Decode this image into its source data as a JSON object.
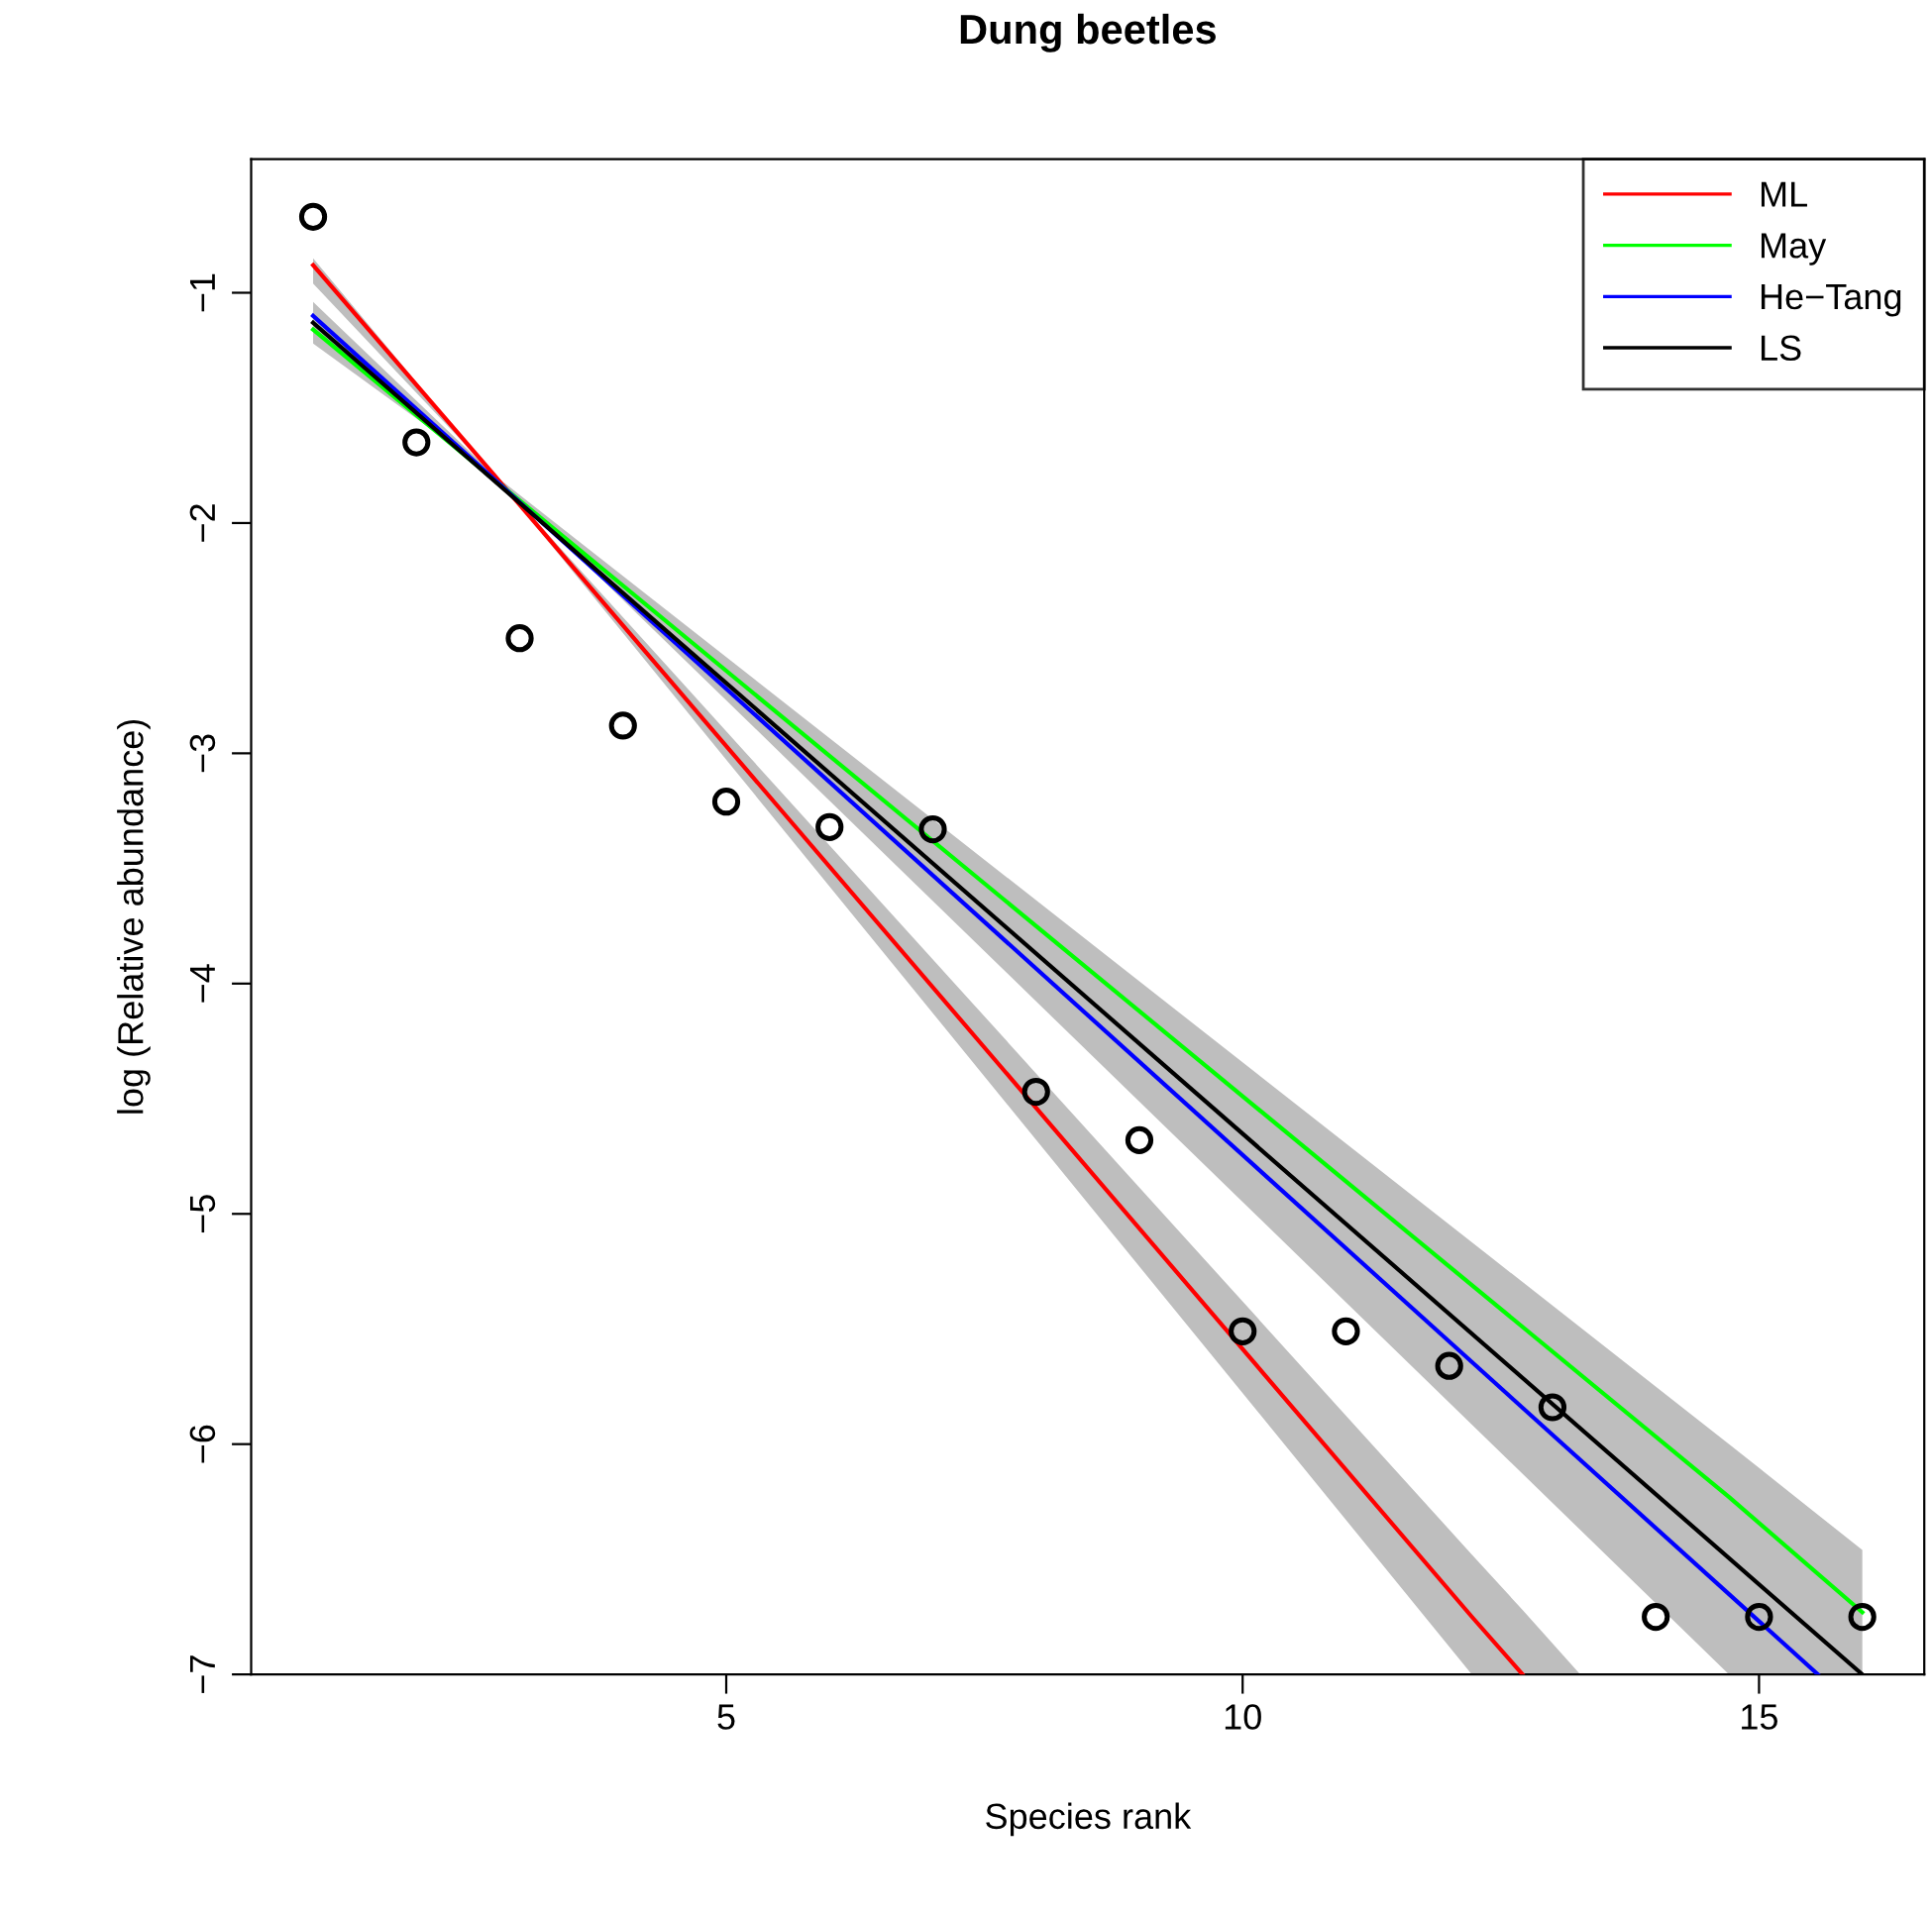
{
  "chart_data": {
    "type": "line",
    "title": "Dung beetles",
    "xlabel": "Species rank",
    "ylabel": "log (Relative abundance)",
    "xlim": [
      0.4,
      16.6
    ],
    "xticks": [
      5,
      10,
      15
    ],
    "ylim": [
      -7,
      -0.42
    ],
    "yticks": [
      {
        "value": -1,
        "label": "−1"
      },
      {
        "value": -2,
        "label": "−2"
      },
      {
        "value": -3,
        "label": "−3"
      },
      {
        "value": -4,
        "label": "−4"
      },
      {
        "value": -5,
        "label": "−5"
      },
      {
        "value": -6,
        "label": "−6"
      },
      {
        "value": -7,
        "label": "−7"
      }
    ],
    "grid": false,
    "legend": "top right",
    "line_style": "solid",
    "series": [
      {
        "type": "scatter",
        "marker": "circle",
        "color": "#000000",
        "x": [
          1,
          2,
          3,
          4,
          5,
          6,
          7,
          8,
          9,
          10,
          11,
          12,
          13,
          14,
          15,
          16
        ],
        "values": [
          -0.67,
          -1.65,
          -2.5,
          -2.88,
          -3.21,
          -3.32,
          -3.33,
          -4.47,
          -4.68,
          -5.51,
          -5.51,
          -5.66,
          -5.84,
          -6.75,
          -6.75,
          -6.75
        ]
      },
      {
        "name": "ML",
        "color": "#ff0000",
        "x": [
          1,
          2.75,
          12.22,
          12.71,
          13.27
        ],
        "values": [
          -0.88,
          -1.79,
          -6.75,
          -7,
          null
        ],
        "lower": [
          -0.96,
          -1.79,
          -7,
          -7,
          -7
        ],
        "upper": [
          -0.85,
          -1.79,
          -6.48,
          -6.72,
          -7
        ]
      },
      {
        "name": "May",
        "color": "#00ff00",
        "x": [
          1,
          2.75,
          14.71,
          16
        ],
        "values": [
          -1.16,
          -1.81,
          -6.23,
          -6.73
        ],
        "lower": [
          -1.22,
          -1.79,
          -7,
          -7
        ],
        "upper": [
          -1.04,
          -1.79,
          -6.0,
          -6.46
        ]
      },
      {
        "name": "He−Tang",
        "color": "#0000ff",
        "x": [
          1,
          15.57
        ],
        "values": [
          -1.1,
          -7
        ]
      },
      {
        "name": "LS",
        "color": "#000000",
        "x": [
          1,
          16
        ],
        "values": [
          -1.13,
          -7
        ]
      }
    ]
  }
}
